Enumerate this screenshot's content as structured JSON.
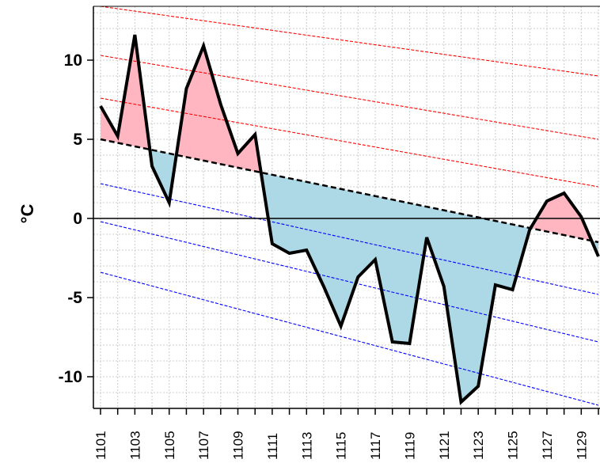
{
  "chart_data": {
    "type": "line",
    "ylabel": "°C",
    "ylim": [
      -12,
      13.4
    ],
    "x": [
      1101,
      1102,
      1103,
      1104,
      1105,
      1106,
      1107,
      1108,
      1109,
      1110,
      1111,
      1112,
      1113,
      1114,
      1115,
      1116,
      1117,
      1118,
      1119,
      1120,
      1121,
      1122,
      1123,
      1124,
      1125,
      1126,
      1127,
      1128,
      1129,
      1130
    ],
    "x_tick_labels": [
      "1101",
      "1103",
      "1105",
      "1107",
      "1109",
      "1111",
      "1113",
      "1115",
      "1117",
      "1119",
      "1121",
      "1123",
      "1125",
      "1127",
      "1129"
    ],
    "y_ticks": [
      -10,
      -5,
      0,
      5,
      10
    ],
    "y_tick_labels": [
      "-10",
      "-5",
      "0",
      "5",
      "10"
    ],
    "grid": true,
    "shading": {
      "above_normal_color": "#ffb6c1",
      "below_normal_color": "#add8e6"
    },
    "series": [
      {
        "role": "observed",
        "color": "#000000",
        "style": "solid",
        "values": [
          7.1,
          5.2,
          11.6,
          3.3,
          1.0,
          8.2,
          10.9,
          7.2,
          4.1,
          5.3,
          -1.6,
          -2.2,
          -2.0,
          -4.3,
          -6.8,
          -3.7,
          -2.6,
          -7.8,
          -7.9,
          -1.2,
          -4.3,
          -11.6,
          -10.6,
          -4.2,
          -4.5,
          -0.7,
          1.1,
          1.6,
          0.1,
          -2.4
        ]
      },
      {
        "role": "normal",
        "color": "#000000",
        "style": "dashed",
        "start": 5.0,
        "end": -1.5
      },
      {
        "role": "upper",
        "color": "#ff0000",
        "style": "dashed",
        "start": 7.6,
        "end": 2.0
      },
      {
        "role": "upper",
        "color": "#ff0000",
        "style": "dashed",
        "start": 10.3,
        "end": 5.0
      },
      {
        "role": "upper",
        "color": "#ff0000",
        "style": "dashed",
        "start": 13.4,
        "end": 9.0
      },
      {
        "role": "lower",
        "color": "#0000ff",
        "style": "dashed",
        "start": 2.2,
        "end": -4.8
      },
      {
        "role": "lower",
        "color": "#0000ff",
        "style": "dashed",
        "start": -0.2,
        "end": -7.8
      },
      {
        "role": "lower",
        "color": "#0000ff",
        "style": "dashed",
        "start": -3.4,
        "end": -11.8
      }
    ]
  }
}
